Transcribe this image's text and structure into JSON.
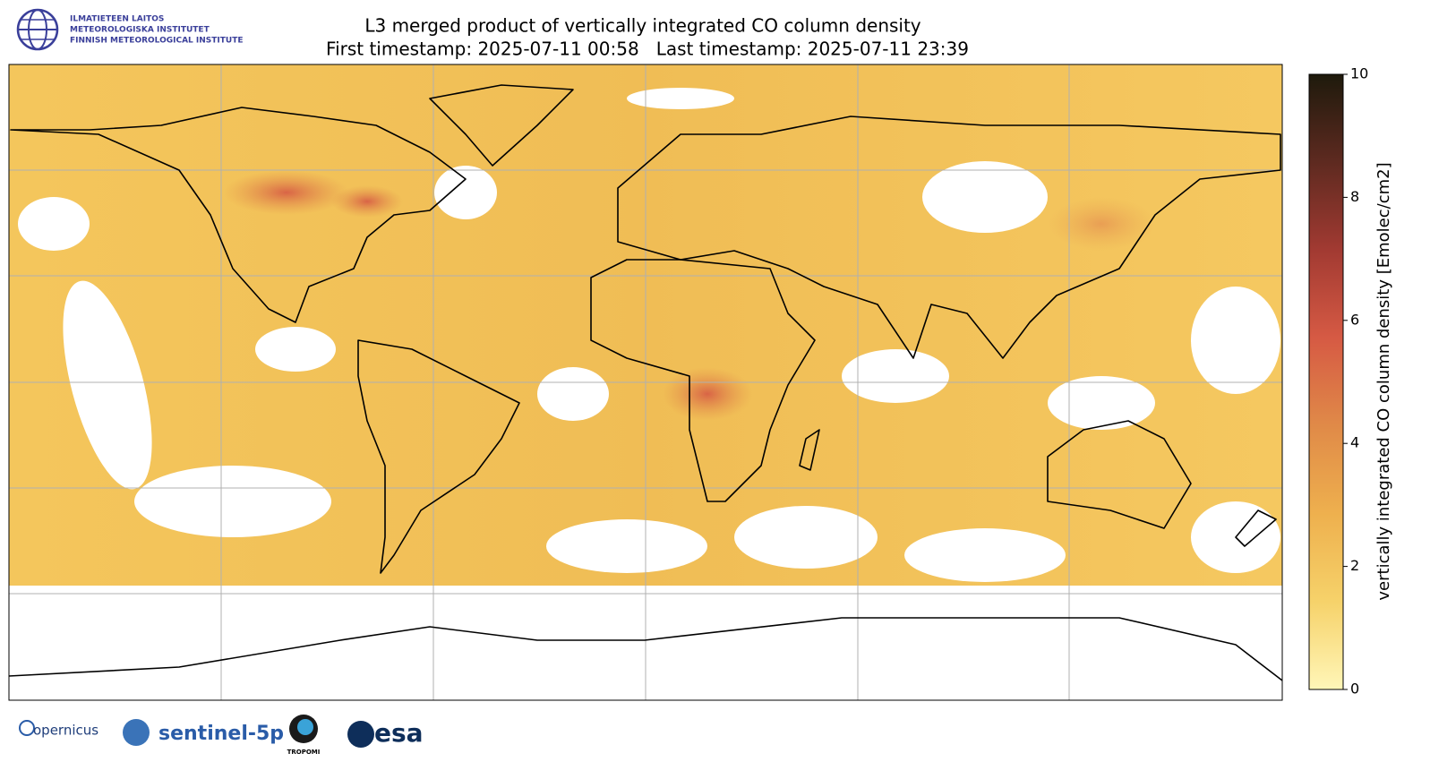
{
  "header": {
    "logo_lines": [
      "ILMATIETEEN LAITOS",
      "METEOROLOGISKA INSTITUTET",
      "FINNISH METEOROLOGICAL INSTITUTE"
    ],
    "title": "L3 merged product of vertically integrated CO column density",
    "subtitle": "First timestamp: 2025-07-11 00:58   Last timestamp: 2025-07-11 23:39"
  },
  "colorbar": {
    "label": "vertically integrated CO column density [Emolec/cm2]",
    "lim": [
      0,
      10
    ],
    "ticks": [
      0,
      2,
      4,
      6,
      8,
      10
    ],
    "colors": [
      "#fff6b8",
      "#f6d26a",
      "#eeb04e",
      "#e08a48",
      "#d65a44",
      "#a23a32",
      "#5e2a20",
      "#1e1a0c"
    ]
  },
  "footer": {
    "logos": [
      "opernicus",
      "sentinel-5p",
      "TROPOMI",
      "esa"
    ]
  }
}
